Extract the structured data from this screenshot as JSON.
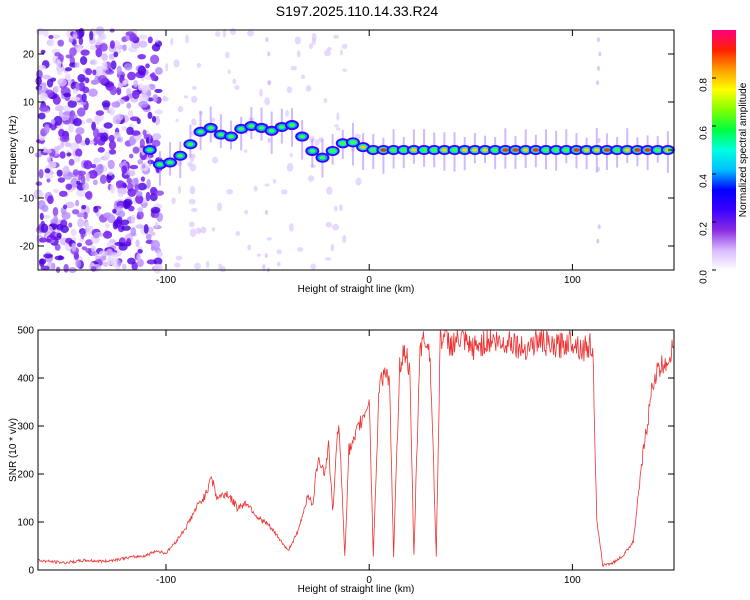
{
  "chart_data": [
    {
      "type": "heatmap",
      "title": "S197.2025.110.14.33.R24",
      "xlabel": "Height of straight line (km)",
      "ylabel": "Frequency (Hz)",
      "xlim": [
        -163,
        150
      ],
      "ylim": [
        -25,
        25
      ],
      "x_ticks": [
        -100,
        0,
        100
      ],
      "y_ticks": [
        -20,
        -10,
        0,
        10,
        20
      ],
      "colorbar": {
        "label": "Normalized spectral amplitude",
        "range": [
          0,
          1
        ],
        "ticks": [
          "0.0",
          "0.2",
          "0.4",
          "0.6",
          "0.8"
        ],
        "colormap": [
          "#ffffff",
          "#d8b8ff",
          "#8a2be2",
          "#3a00ff",
          "#0000ff",
          "#00bfff",
          "#00ffe0",
          "#00ff40",
          "#80ff00",
          "#ffff00",
          "#ffa000",
          "#ff2000",
          "#ff0080"
        ]
      },
      "ridge": {
        "x": [
          -105,
          -100,
          -95,
          -90,
          -85,
          -80,
          -75,
          -70,
          -65,
          -60,
          -55,
          -50,
          -45,
          -40,
          -35,
          -30,
          -25,
          -20,
          -15,
          -10,
          -5,
          0,
          10,
          20,
          30,
          40,
          50,
          60,
          70,
          80,
          90,
          100,
          110,
          120,
          130,
          140,
          150
        ],
        "y": [
          -3,
          -3,
          -2,
          0,
          3,
          5,
          4,
          2,
          4,
          5,
          5,
          4,
          4,
          6,
          4,
          1,
          -2,
          -1,
          1,
          2,
          1,
          0,
          0,
          0,
          0,
          0,
          0,
          0,
          0,
          0,
          0,
          0,
          0,
          0,
          0,
          0,
          0
        ]
      },
      "grid": false
    },
    {
      "type": "line",
      "xlabel": "Height of straight line (km)",
      "ylabel": "SNR (10 * v/v)",
      "xlim": [
        -163,
        150
      ],
      "ylim": [
        0,
        500
      ],
      "x_ticks": [
        -100,
        0,
        100
      ],
      "y_ticks": [
        0,
        100,
        200,
        300,
        400,
        500
      ],
      "line_color": "#ee3333",
      "series": [
        {
          "x": [
            -163,
            -150,
            -140,
            -130,
            -120,
            -110,
            -105,
            -100,
            -95,
            -90,
            -85,
            -80,
            -78,
            -75,
            -70,
            -65,
            -60,
            -55,
            -50,
            -45,
            -40,
            -35,
            -30,
            -28,
            -25,
            -22,
            -20,
            -18,
            -15,
            -12,
            -10,
            -8,
            -5,
            -2,
            0,
            2,
            5,
            8,
            10,
            12,
            15,
            18,
            20,
            22,
            25,
            28,
            30,
            33,
            35,
            38,
            40,
            45,
            50,
            55,
            60,
            65,
            70,
            75,
            80,
            85,
            90,
            95,
            100,
            105,
            110,
            112,
            115,
            120,
            125,
            130,
            135,
            140,
            145,
            150
          ],
          "y": [
            20,
            15,
            20,
            18,
            25,
            30,
            40,
            35,
            60,
            90,
            130,
            160,
            200,
            150,
            160,
            130,
            140,
            110,
            95,
            70,
            40,
            80,
            160,
            130,
            240,
            200,
            260,
            120,
            320,
            30,
            250,
            260,
            300,
            330,
            360,
            30,
            390,
            420,
            380,
            30,
            430,
            460,
            400,
            30,
            470,
            480,
            450,
            30,
            490,
            480,
            470,
            480,
            460,
            470,
            480,
            470,
            480,
            460,
            470,
            480,
            460,
            470,
            480,
            460,
            470,
            100,
            10,
            15,
            30,
            60,
            250,
            400,
            430,
            460
          ]
        }
      ],
      "grid": false
    }
  ]
}
